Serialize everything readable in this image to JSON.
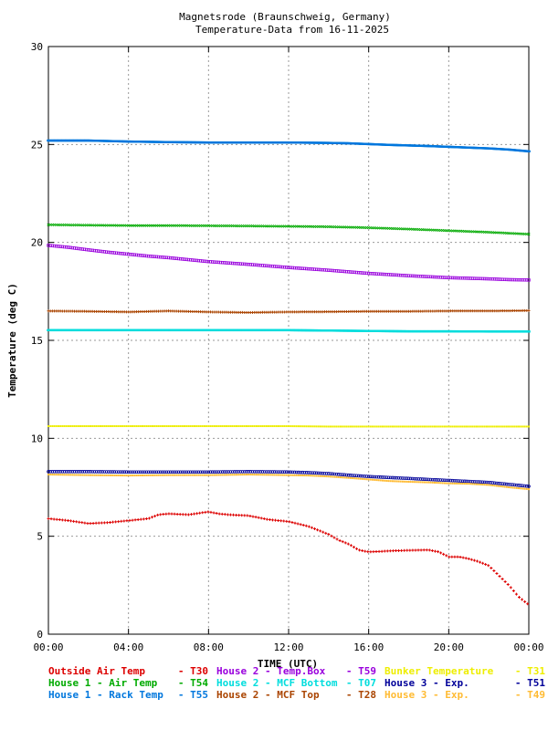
{
  "chart_data": {
    "type": "scatter",
    "title": "Magnetsrode (Braunschweig, Germany)",
    "subtitle": "Temperature-Data from 16-11-2025",
    "xlabel": "TIME (UTC)",
    "ylabel": "Temperature (deg C)",
    "xlim": [
      0,
      24
    ],
    "ylim": [
      0,
      30
    ],
    "x_ticks": [
      "00:00",
      "04:00",
      "08:00",
      "12:00",
      "16:00",
      "20:00",
      "00:00"
    ],
    "y_ticks": [
      "0",
      "5",
      "10",
      "15",
      "20",
      "25",
      "30"
    ],
    "grid": true,
    "legend_position": "bottom",
    "series": [
      {
        "name": "House 1 - Rack Temp",
        "code": "- T55",
        "color": "#0077dd",
        "marker": "dash",
        "x": [
          0,
          2,
          4,
          6,
          8,
          10,
          12,
          14,
          15,
          16,
          17,
          18,
          19,
          20,
          21,
          22,
          23,
          24
        ],
        "values": [
          25.2,
          25.2,
          25.15,
          25.12,
          25.1,
          25.1,
          25.1,
          25.08,
          25.06,
          25.02,
          24.98,
          24.95,
          24.92,
          24.88,
          24.84,
          24.8,
          24.74,
          24.65
        ]
      },
      {
        "name": "House 1 - Air  Temp",
        "code": "- T54",
        "color": "#00aa00",
        "marker": "x",
        "x": [
          0,
          2,
          4,
          6,
          8,
          10,
          12,
          14,
          16,
          18,
          20,
          22,
          24
        ],
        "values": [
          20.9,
          20.88,
          20.86,
          20.86,
          20.85,
          20.84,
          20.82,
          20.8,
          20.75,
          20.68,
          20.6,
          20.52,
          20.42
        ]
      },
      {
        "name": "House 2 - Temp.Box",
        "code": "- T59",
        "color": "#9900dd",
        "marker": "square",
        "x": [
          0,
          1,
          2,
          3,
          4,
          5,
          6,
          7,
          8,
          9,
          10,
          11,
          12,
          13,
          14,
          15,
          16,
          17,
          18,
          19,
          20,
          21,
          22,
          23,
          24
        ],
        "values": [
          19.85,
          19.75,
          19.62,
          19.5,
          19.4,
          19.3,
          19.22,
          19.12,
          19.02,
          18.95,
          18.88,
          18.8,
          18.72,
          18.65,
          18.58,
          18.5,
          18.42,
          18.36,
          18.3,
          18.25,
          18.2,
          18.17,
          18.14,
          18.1,
          18.08
        ]
      },
      {
        "name": "House 2 - MCF Top",
        "code": "- T28",
        "color": "#aa4400",
        "marker": "plus",
        "x": [
          0,
          2,
          4,
          6,
          8,
          10,
          12,
          14,
          16,
          18,
          20,
          22,
          24
        ],
        "values": [
          16.5,
          16.48,
          16.45,
          16.5,
          16.45,
          16.42,
          16.45,
          16.46,
          16.48,
          16.48,
          16.5,
          16.5,
          16.52
        ]
      },
      {
        "name": "House 2 - MCF Bottom",
        "code": "- T07",
        "color": "#00dddd",
        "marker": "dash",
        "x": [
          0,
          2,
          4,
          6,
          8,
          10,
          12,
          14,
          16,
          18,
          20,
          22,
          24
        ],
        "values": [
          15.52,
          15.52,
          15.52,
          15.52,
          15.52,
          15.52,
          15.52,
          15.5,
          15.48,
          15.46,
          15.46,
          15.45,
          15.45
        ]
      },
      {
        "name": "Bunker Temperature",
        "code": "- T31",
        "color": "#eeee00",
        "marker": "dot",
        "x": [
          0,
          2,
          4,
          6,
          8,
          10,
          12,
          14,
          16,
          18,
          20,
          22,
          24
        ],
        "values": [
          10.62,
          10.62,
          10.62,
          10.62,
          10.62,
          10.62,
          10.62,
          10.6,
          10.6,
          10.6,
          10.6,
          10.6,
          10.6
        ]
      },
      {
        "name": "House 3 - Exp.",
        "code": "- T51",
        "color": "#000099",
        "marker": "circle",
        "x": [
          0,
          2,
          4,
          6,
          8,
          10,
          12,
          13,
          14,
          15,
          16,
          17,
          18,
          19,
          20,
          21,
          22,
          23,
          24
        ],
        "values": [
          8.3,
          8.3,
          8.28,
          8.28,
          8.28,
          8.3,
          8.28,
          8.25,
          8.2,
          8.12,
          8.05,
          8.0,
          7.95,
          7.9,
          7.85,
          7.8,
          7.75,
          7.65,
          7.55
        ]
      },
      {
        "name": "House 3 - Exp.",
        "code": "- T49",
        "color": "#ffbb33",
        "marker": "dot",
        "x": [
          0,
          2,
          4,
          6,
          8,
          10,
          12,
          13,
          14,
          15,
          16,
          17,
          18,
          19,
          20,
          21,
          22,
          23,
          24
        ],
        "values": [
          8.15,
          8.12,
          8.1,
          8.12,
          8.12,
          8.15,
          8.12,
          8.1,
          8.05,
          7.98,
          7.9,
          7.82,
          7.78,
          7.75,
          7.7,
          7.68,
          7.62,
          7.5,
          7.4
        ]
      },
      {
        "name": "Outside Air Temp",
        "code": "- T30",
        "color": "#dd0000",
        "marker": "plus",
        "x": [
          0,
          1,
          2,
          3,
          4,
          5,
          5.5,
          6,
          7,
          8,
          8.5,
          9,
          10,
          11,
          12,
          13,
          13.5,
          14,
          14.5,
          15,
          15.5,
          16,
          16.5,
          17,
          18,
          19,
          19.5,
          20,
          20.5,
          21,
          21.5,
          22,
          22.5,
          23,
          23.5,
          24
        ],
        "values": [
          5.9,
          5.8,
          5.65,
          5.7,
          5.8,
          5.9,
          6.1,
          6.15,
          6.1,
          6.25,
          6.15,
          6.1,
          6.05,
          5.85,
          5.75,
          5.5,
          5.3,
          5.1,
          4.8,
          4.6,
          4.3,
          4.2,
          4.22,
          4.25,
          4.28,
          4.3,
          4.2,
          3.95,
          3.95,
          3.85,
          3.7,
          3.5,
          3.0,
          2.5,
          1.9,
          1.5
        ]
      }
    ]
  }
}
